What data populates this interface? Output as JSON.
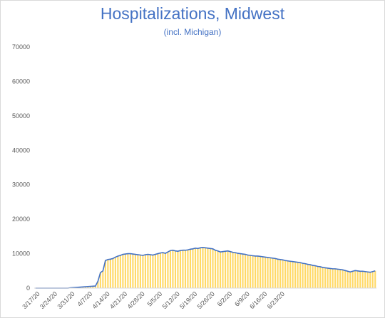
{
  "chart_data": {
    "type": "bar",
    "title": "Hospitalizations, Midwest",
    "subtitle": "(incl. Michigan)",
    "xlabel": "",
    "ylabel": "",
    "ylim": [
      0,
      70000
    ],
    "yticks": [
      "0",
      "10000",
      "20000",
      "30000",
      "40000",
      "50000",
      "60000",
      "70000"
    ],
    "x_tick_labels": [
      "3/17/20",
      "3/24/20",
      "3/31/20",
      "4/7/20",
      "4/14/20",
      "4/21/20",
      "4/28/20",
      "5/5/20",
      "5/12/20",
      "5/19/20",
      "5/26/20",
      "6/2/20",
      "6/9/20",
      "6/16/20",
      "6/23/20"
    ],
    "start_date": "3/17/20",
    "grid": false,
    "legend": "none",
    "colors": {
      "bar": "#ffd966",
      "line": "#4472c4",
      "axis": "#d9d9d9",
      "title": "#4472c4"
    },
    "series": [
      {
        "type": "bar",
        "values": [
          0,
          0,
          0,
          0,
          0,
          0,
          0,
          0,
          0,
          0,
          0,
          0,
          0,
          0,
          100,
          150,
          200,
          250,
          300,
          350,
          400,
          450,
          500,
          550,
          600,
          2000,
          4500,
          5000,
          8000,
          8300,
          8400,
          8600,
          9000,
          9300,
          9500,
          9800,
          9900,
          10000,
          10000,
          9900,
          9800,
          9700,
          9600,
          9500,
          9700,
          9800,
          9700,
          9600,
          9800,
          10000,
          10200,
          10300,
          10100,
          10500,
          10900,
          11000,
          10800,
          10700,
          10900,
          11000,
          11000,
          11100,
          11300,
          11400,
          11600,
          11500,
          11700,
          11800,
          11700,
          11600,
          11500,
          11400,
          11000,
          10800,
          10500,
          10600,
          10700,
          10800,
          10600,
          10400,
          10300,
          10100,
          10000,
          9900,
          9800,
          9600,
          9500,
          9400,
          9300,
          9300,
          9200,
          9100,
          9000,
          8900,
          8800,
          8700,
          8600,
          8400,
          8300,
          8200,
          8000,
          7900,
          7800,
          7700,
          7600,
          7500,
          7400,
          7200,
          7100,
          6900,
          6800,
          6600,
          6500,
          6300,
          6200,
          6000,
          5900,
          5800,
          5700,
          5600,
          5600,
          5500,
          5400,
          5300,
          5100,
          4900,
          4700,
          4900,
          5100,
          5000,
          4900,
          4900,
          4800,
          4700,
          4600,
          4800,
          5000
        ]
      },
      {
        "type": "line",
        "values": [
          0,
          0,
          0,
          0,
          0,
          0,
          0,
          0,
          0,
          0,
          0,
          0,
          0,
          0,
          100,
          150,
          200,
          250,
          300,
          350,
          400,
          450,
          500,
          550,
          600,
          2000,
          4500,
          5000,
          8000,
          8300,
          8400,
          8600,
          9000,
          9300,
          9500,
          9800,
          9900,
          10000,
          10000,
          9900,
          9800,
          9700,
          9600,
          9500,
          9700,
          9800,
          9700,
          9600,
          9800,
          10000,
          10200,
          10300,
          10100,
          10500,
          10900,
          11000,
          10800,
          10700,
          10900,
          11000,
          11000,
          11100,
          11300,
          11400,
          11600,
          11500,
          11700,
          11800,
          11700,
          11600,
          11500,
          11400,
          11000,
          10800,
          10500,
          10600,
          10700,
          10800,
          10600,
          10400,
          10300,
          10100,
          10000,
          9900,
          9800,
          9600,
          9500,
          9400,
          9300,
          9300,
          9200,
          9100,
          9000,
          8900,
          8800,
          8700,
          8600,
          8400,
          8300,
          8200,
          8000,
          7900,
          7800,
          7700,
          7600,
          7500,
          7400,
          7200,
          7100,
          6900,
          6800,
          6600,
          6500,
          6300,
          6200,
          6000,
          5900,
          5800,
          5700,
          5600,
          5600,
          5500,
          5400,
          5300,
          5100,
          4900,
          4700,
          4900,
          5100,
          5000,
          4900,
          4900,
          4800,
          4700,
          4600,
          4800,
          5000
        ]
      }
    ]
  }
}
